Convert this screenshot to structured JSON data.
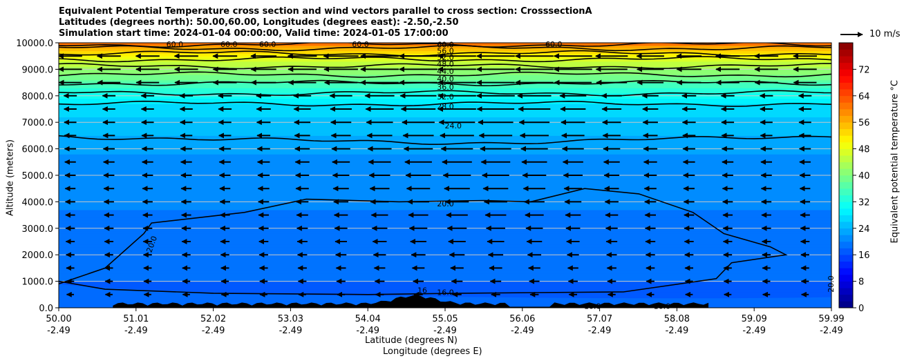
{
  "title_lines": [
    "Equivalent Potential Temperature cross section and wind vectors parallel to cross section: CrosssectionA",
    "Latitudes (degrees north): 50.00,60.00, Longitudes (degrees east): -2.50,-2.50",
    "Simulation start time: 2024-01-04 00:00:00, Valid time: 2024-01-05 17:00:00"
  ],
  "reference_vector_label": "10 m/s",
  "chart_data": {
    "type": "contour",
    "ylabel": "Altitude (meters)",
    "xlabel_lines": [
      "Latitude (degrees N)",
      "Longitude (degrees E)"
    ],
    "colorbar_label": "Equivalent potential temperature $^\\circ$C",
    "colorbar_label_display": "Equivalent potential temperature °C",
    "colormap": "jet",
    "grid": "horizontal",
    "ylim": [
      0,
      10000
    ],
    "clim": [
      0,
      80
    ],
    "x_ticks": [
      {
        "lat": "50.00",
        "lon": "-2.49"
      },
      {
        "lat": "51.01",
        "lon": "-2.49"
      },
      {
        "lat": "52.02",
        "lon": "-2.49"
      },
      {
        "lat": "53.03",
        "lon": "-2.49"
      },
      {
        "lat": "54.04",
        "lon": "-2.49"
      },
      {
        "lat": "55.05",
        "lon": "-2.49"
      },
      {
        "lat": "56.06",
        "lon": "-2.49"
      },
      {
        "lat": "57.07",
        "lon": "-2.49"
      },
      {
        "lat": "58.08",
        "lon": "-2.49"
      },
      {
        "lat": "59.09",
        "lon": "-2.49"
      },
      {
        "lat": "59.99",
        "lon": "-2.49"
      }
    ],
    "y_ticks": [
      "0.0",
      "1000.0",
      "2000.0",
      "3000.0",
      "4000.0",
      "5000.0",
      "6000.0",
      "7000.0",
      "8000.0",
      "9000.0",
      "10000.0"
    ],
    "colorbar_ticks": [
      "0",
      "8",
      "16",
      "24",
      "32",
      "40",
      "48",
      "56",
      "64",
      "72"
    ],
    "contour_labels": [
      {
        "text": "60.0",
        "lat": 51.5,
        "alt": 9950
      },
      {
        "text": "60.0",
        "lat": 52.2,
        "alt": 9950
      },
      {
        "text": "60.0",
        "lat": 52.7,
        "alt": 9950
      },
      {
        "text": "60.0",
        "lat": 53.9,
        "alt": 9950
      },
      {
        "text": "60.0",
        "lat": 55.0,
        "alt": 9930
      },
      {
        "text": "60.0",
        "lat": 56.4,
        "alt": 9950
      },
      {
        "text": "56.0",
        "lat": 55.0,
        "alt": 9700
      },
      {
        "text": "52.0",
        "lat": 55.0,
        "alt": 9450
      },
      {
        "text": "48.0",
        "lat": 55.0,
        "alt": 9200
      },
      {
        "text": "44.0",
        "lat": 55.0,
        "alt": 8930
      },
      {
        "text": "40.0",
        "lat": 55.0,
        "alt": 8650
      },
      {
        "text": "36.0",
        "lat": 55.0,
        "alt": 8330
      },
      {
        "text": "32.0",
        "lat": 55.0,
        "alt": 7970
      },
      {
        "text": "28.0",
        "lat": 55.0,
        "alt": 7600
      },
      {
        "text": "24.0",
        "lat": 55.1,
        "alt": 6880
      },
      {
        "text": "20.0",
        "lat": 55.0,
        "alt": 3930
      },
      {
        "text": "20.0",
        "lat": 51.2,
        "alt": 2400
      },
      {
        "text": "16.0",
        "lat": 55.0,
        "alt": 580
      },
      {
        "text": "16",
        "lat": 54.7,
        "alt": 670
      },
      {
        "text": "16.0",
        "lat": 56.9,
        "alt": 70
      },
      {
        "text": "16.0",
        "lat": 57.8,
        "alt": 60
      },
      {
        "text": "20.0",
        "lat": 59.98,
        "alt": 900
      }
    ],
    "contour_levels_labeled": [
      16,
      20,
      24,
      28,
      32,
      36,
      40,
      44,
      48,
      52,
      56,
      60
    ],
    "theta_e_profile": [
      {
        "alt": 0,
        "value": 17
      },
      {
        "alt": 1500,
        "value": 18.5
      },
      {
        "alt": 3000,
        "value": 19.5
      },
      {
        "alt": 4500,
        "value": 20.5
      },
      {
        "alt": 5800,
        "value": 22
      },
      {
        "alt": 6500,
        "value": 24
      },
      {
        "alt": 7200,
        "value": 26
      },
      {
        "alt": 7700,
        "value": 28
      },
      {
        "alt": 8000,
        "value": 31
      },
      {
        "alt": 8400,
        "value": 35
      },
      {
        "alt": 8800,
        "value": 40
      },
      {
        "alt": 9200,
        "value": 45
      },
      {
        "alt": 9500,
        "value": 50
      },
      {
        "alt": 9800,
        "value": 56
      },
      {
        "alt": 10000,
        "value": 62
      }
    ],
    "wind_vector_max_speed_ms": 13,
    "reference_vector_ms": 10
  }
}
